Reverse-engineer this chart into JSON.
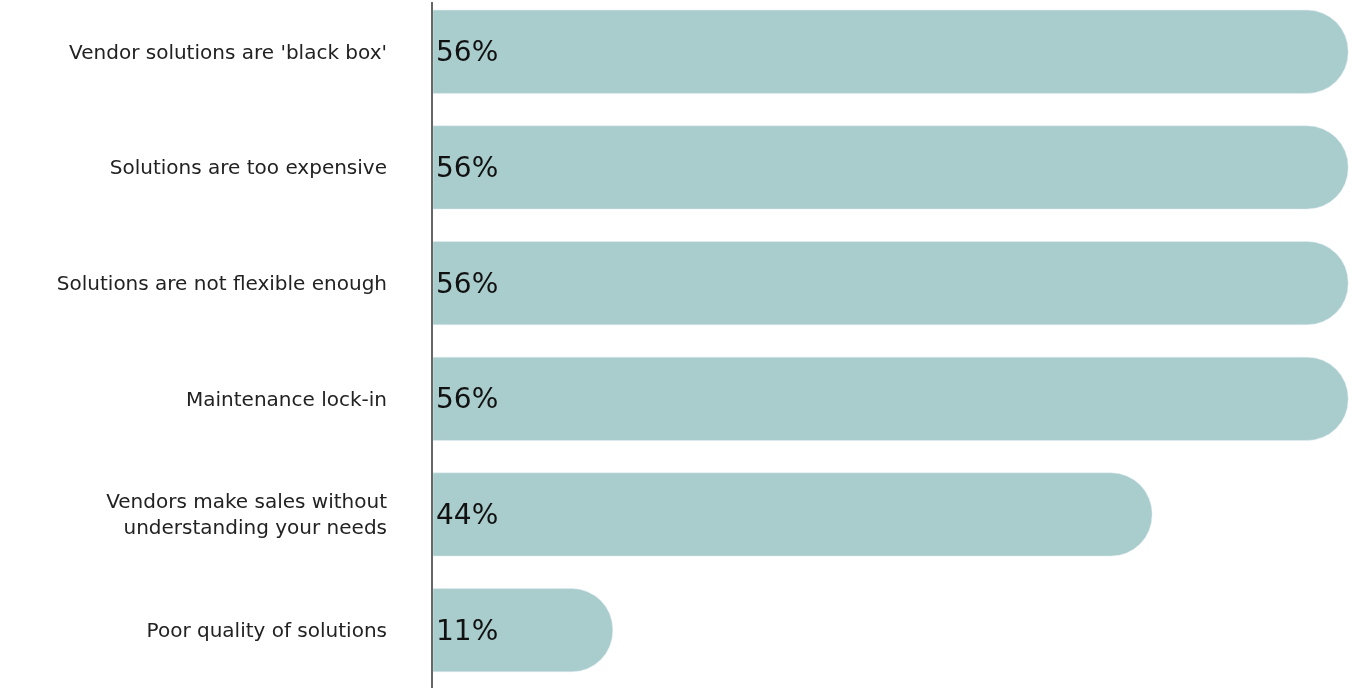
{
  "chart_data": {
    "type": "bar",
    "orientation": "horizontal",
    "categories": [
      "Vendor solutions are 'black box'",
      "Solutions are too expensive",
      "Solutions are not flexible enough",
      "Maintenance lock-in",
      "Vendors make sales without understanding your needs",
      "Poor quality of solutions"
    ],
    "values": [
      56,
      56,
      56,
      56,
      44,
      11
    ],
    "value_labels": [
      "56%",
      "56%",
      "56%",
      "56%",
      "44%",
      "11%"
    ],
    "color": "#a9cdcc"
  }
}
